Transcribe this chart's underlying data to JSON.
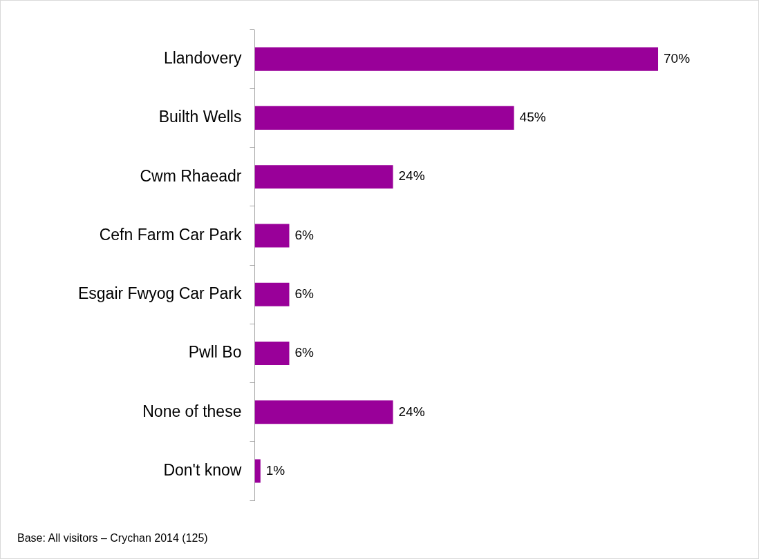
{
  "chart_data": {
    "type": "bar",
    "orientation": "horizontal",
    "categories": [
      "Llandovery",
      "Builth Wells",
      "Cwm Rhaeadr",
      "Cefn Farm Car Park",
      "Esgair Fwyog Car Park",
      "Pwll Bo",
      "None of these",
      "Don't know"
    ],
    "values": [
      70,
      45,
      24,
      6,
      6,
      6,
      24,
      1
    ],
    "value_labels": [
      "70%",
      "45%",
      "24%",
      "6%",
      "6%",
      "6%",
      "24%",
      "1%"
    ],
    "color": "#990099",
    "legend": false,
    "annotations": [
      "Base: All visitors – Crychan 2014 (125)"
    ]
  }
}
